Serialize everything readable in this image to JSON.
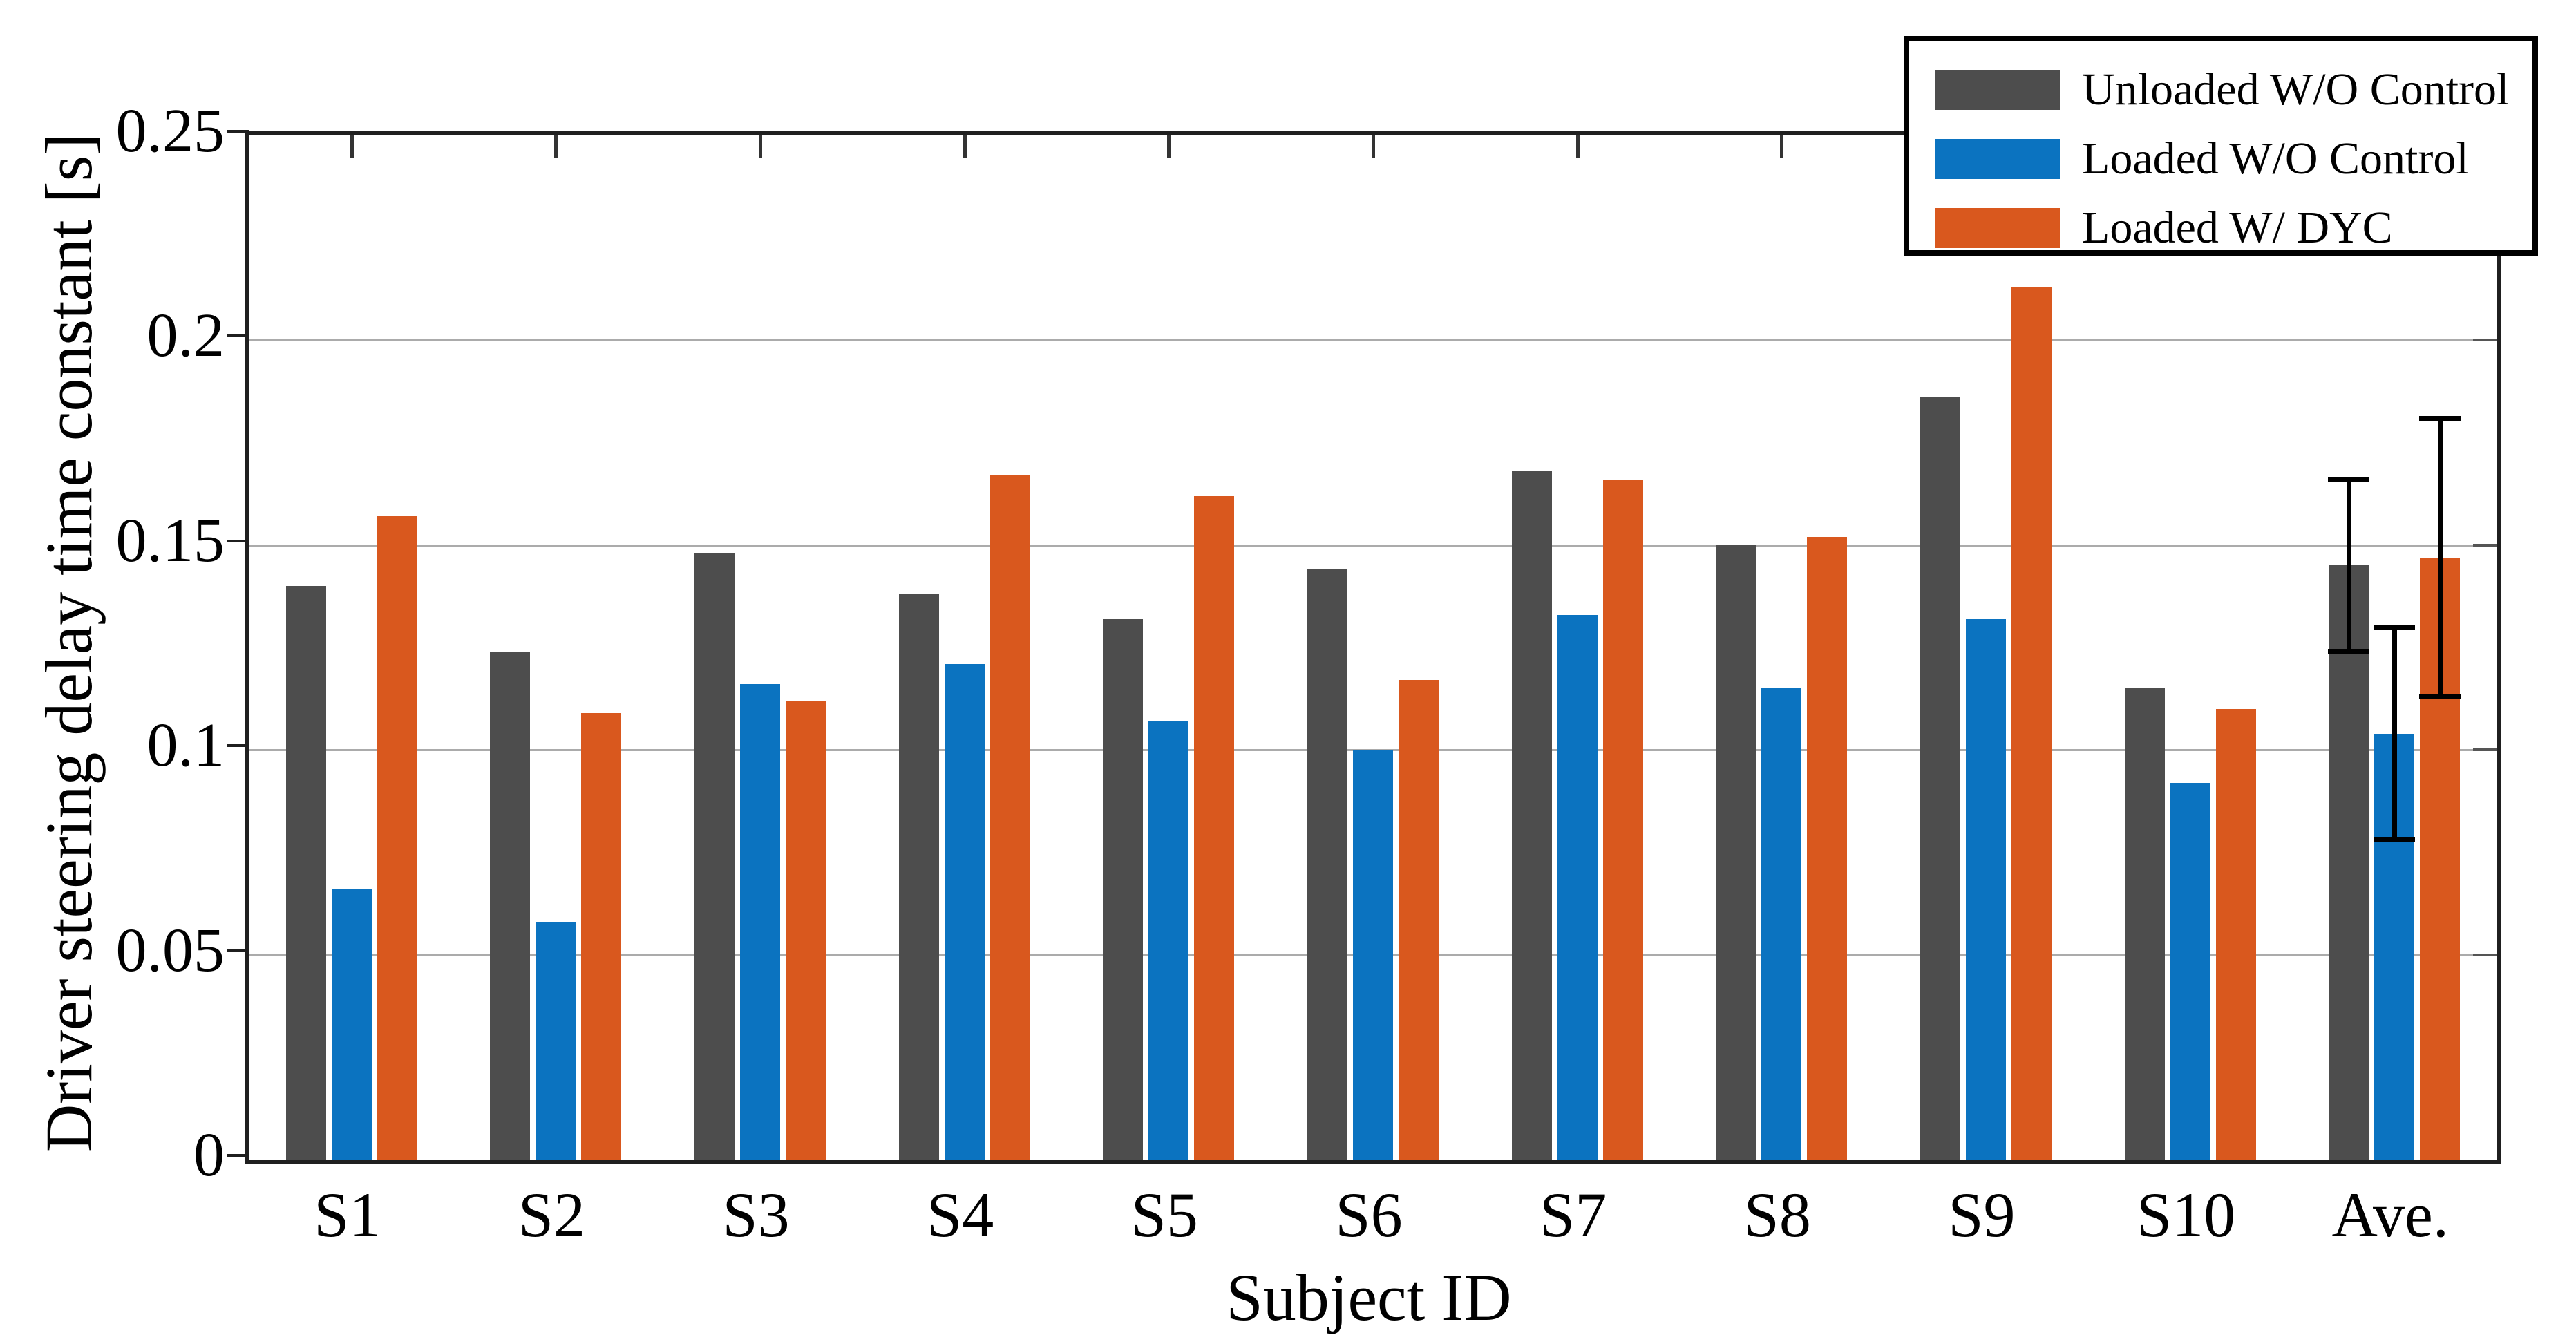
{
  "chart_data": {
    "type": "bar",
    "title": "",
    "xlabel": "Subject ID",
    "ylabel": "Driver steering delay time constant [s]",
    "ylim": [
      0,
      0.25
    ],
    "yticks": [
      0,
      0.05,
      0.1,
      0.15,
      0.2,
      0.25
    ],
    "ytick_labels": [
      "0",
      "0.05",
      "0.1",
      "0.15",
      "0.2",
      "0.25"
    ],
    "grid": "horizontal gridlines at each y tick",
    "legend_position": "top-right, boxed, overlapping plot frame",
    "categories": [
      "S1",
      "S2",
      "S3",
      "S4",
      "S5",
      "S6",
      "S7",
      "S8",
      "S9",
      "S10",
      "Ave."
    ],
    "error_bar_category": "Ave.",
    "series": [
      {
        "name": "Unloaded W/O Control",
        "color": "#4d4d4d",
        "values": [
          0.14,
          0.124,
          0.148,
          0.138,
          0.132,
          0.144,
          0.168,
          0.15,
          0.186,
          0.115,
          0.145
        ],
        "ave_error": {
          "plus": 0.021,
          "minus": 0.021
        }
      },
      {
        "name": "Loaded W/O Control",
        "color": "#0b73c0",
        "values": [
          0.066,
          0.058,
          0.116,
          0.121,
          0.107,
          0.1,
          0.133,
          0.115,
          0.132,
          0.092,
          0.104
        ],
        "ave_error": {
          "plus": 0.026,
          "minus": 0.026
        }
      },
      {
        "name": "Loaded W/ DYC",
        "color": "#d9581e",
        "values": [
          0.157,
          0.109,
          0.112,
          0.167,
          0.162,
          0.117,
          0.166,
          0.152,
          0.213,
          0.11,
          0.147
        ],
        "ave_error": {
          "plus": 0.034,
          "minus": 0.034
        }
      }
    ]
  }
}
